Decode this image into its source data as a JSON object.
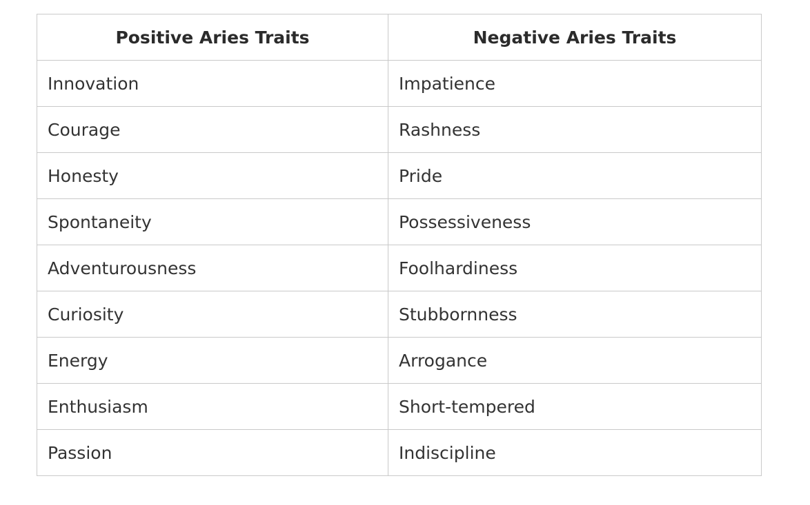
{
  "table": {
    "headers": [
      "Positive Aries Traits",
      "Negative Aries Traits"
    ],
    "rows": [
      [
        "Innovation",
        "Impatience"
      ],
      [
        "Courage",
        "Rashness"
      ],
      [
        "Honesty",
        "Pride"
      ],
      [
        "Spontaneity",
        "Possessiveness"
      ],
      [
        "Adventurousness",
        "Foolhardiness"
      ],
      [
        "Curiosity",
        "Stubbornness"
      ],
      [
        "Energy",
        "Arrogance"
      ],
      [
        "Enthusiasm",
        "Short-tempered"
      ],
      [
        "Passion",
        "Indiscipline"
      ]
    ]
  }
}
